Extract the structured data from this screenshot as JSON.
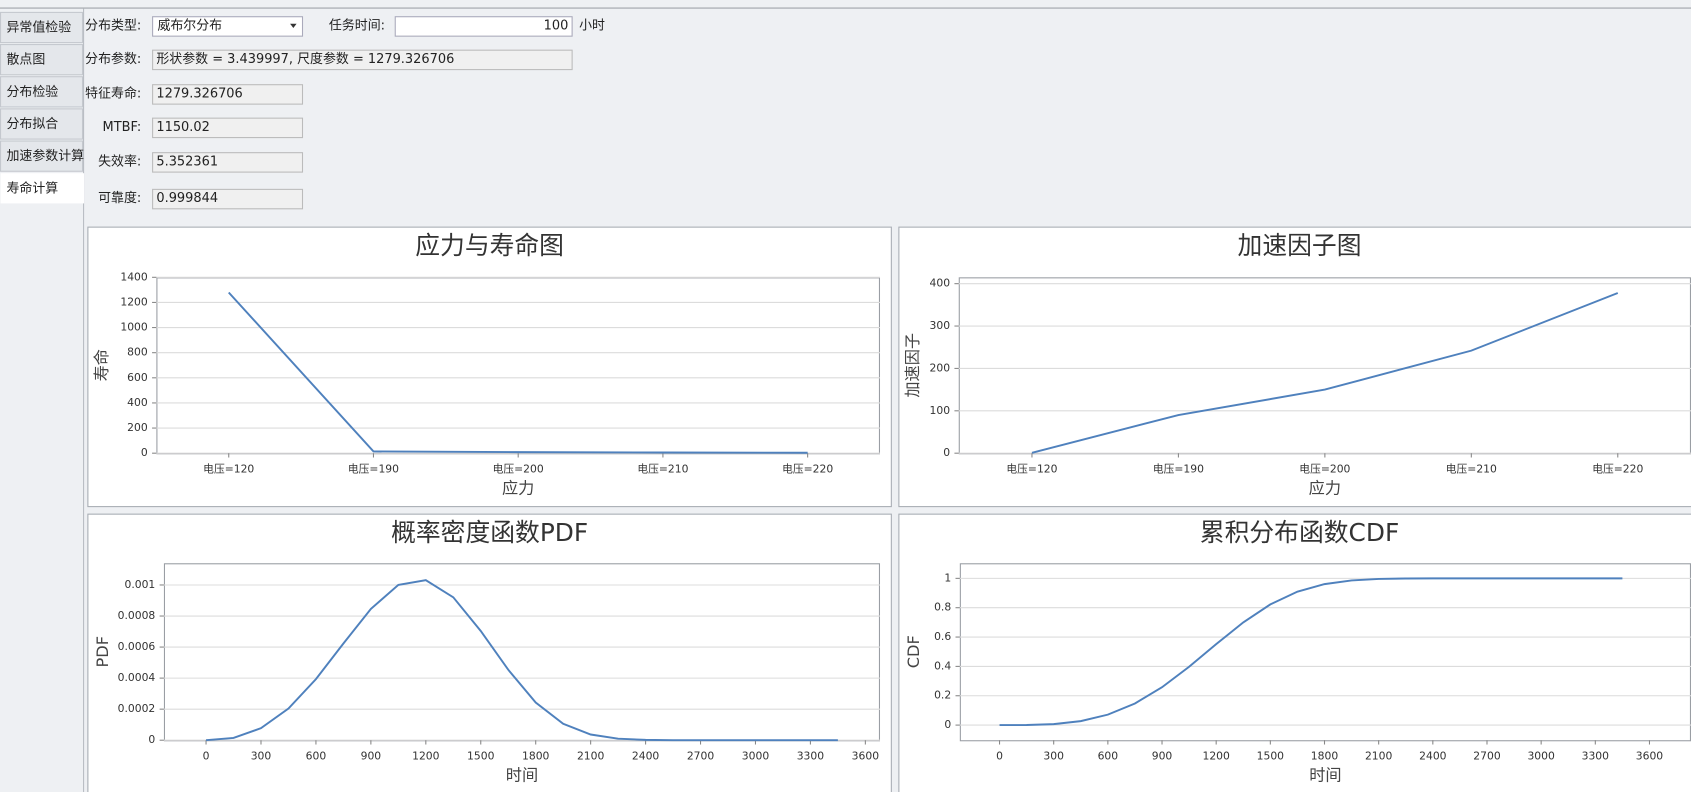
{
  "tabs": [
    "异常值检验",
    "散点图",
    "分布检验",
    "分布拟合",
    "加速参数计算",
    "寿命计算"
  ],
  "form": {
    "dist_type": {
      "label": "分布类型:",
      "value": "威布尔分布"
    },
    "task_time": {
      "label": "任务时间:",
      "value": "100",
      "unit": "小时"
    },
    "params": {
      "label": "分布参数:",
      "value": "形状参数 = 3.439997, 尺度参数 = 1279.326706"
    },
    "char_life": {
      "label": "特征寿命:",
      "value": "1279.326706"
    },
    "mtbf": {
      "label": "MTBF:",
      "value": "1150.02"
    },
    "failure_rate": {
      "label": "失效率:",
      "value": "5.352361"
    },
    "reliability": {
      "label": "可靠度:",
      "value": "0.999844"
    }
  },
  "chart_data": [
    {
      "type": "line",
      "title": "应力与寿命图",
      "x_label": "应力",
      "y_label": "寿命",
      "categories": [
        "电压=120",
        "电压=190",
        "电压=200",
        "电压=210",
        "电压=220"
      ],
      "values": [
        1279.3,
        14,
        8.5,
        5.3,
        3.4
      ],
      "color": "#4f81bd",
      "ylim": [
        0,
        1400
      ],
      "yticks": [
        0,
        200,
        400,
        600,
        800,
        1000,
        1200,
        1400
      ],
      "grid": true
    },
    {
      "type": "line",
      "title": "加速因子图",
      "x_label": "应力",
      "y_label": "加速因子",
      "categories": [
        "电压=120",
        "电压=190",
        "电压=200",
        "电压=210",
        "电压=220"
      ],
      "values": [
        1,
        90,
        150,
        242,
        378
      ],
      "color": "#4f81bd",
      "ylim": [
        0,
        415
      ],
      "yticks": [
        0,
        100,
        200,
        300,
        400
      ],
      "grid": true
    },
    {
      "type": "line",
      "title": "概率密度函数PDF",
      "x_label": "时间",
      "y_label": "PDF",
      "x": [
        0,
        150,
        300,
        450,
        600,
        750,
        900,
        1050,
        1200,
        1350,
        1500,
        1650,
        1800,
        1950,
        2100,
        2250,
        2400,
        2550,
        2700,
        2850,
        3000,
        3150,
        3300,
        3450
      ],
      "values": [
        0,
        1.44e-05,
        7.76e-05,
        0.0002043,
        0.0003936,
        0.000623,
        0.0008459,
        0.0010002,
        0.0010311,
        0.0009206,
        0.0007037,
        0.0004542,
        0.0002429,
        0.000106,
        3.68e-05,
        9.97e-06,
        2.1e-06,
        3e-07,
        0,
        0,
        0,
        0,
        0,
        0
      ],
      "color": "#4f81bd",
      "xlim": [
        -230,
        3680
      ],
      "xticks": [
        0,
        300,
        600,
        900,
        1200,
        1500,
        1800,
        2100,
        2400,
        2700,
        3000,
        3300,
        3600
      ],
      "ylim": [
        0,
        0.00114
      ],
      "yticks": [
        0,
        0.0002,
        0.0004,
        0.0006,
        0.0008,
        0.001
      ],
      "grid": true
    },
    {
      "type": "line",
      "title": "累积分布函数CDF",
      "x_label": "时间",
      "y_label": "CDF",
      "x": [
        0,
        150,
        300,
        450,
        600,
        750,
        900,
        1050,
        1200,
        1350,
        1500,
        1650,
        1800,
        1950,
        2100,
        2250,
        2400,
        2550,
        2700,
        2850,
        3000,
        3150,
        3300,
        3450
      ],
      "values": [
        0,
        0.0006,
        0.0068,
        0.0271,
        0.0713,
        0.1473,
        0.2579,
        0.3975,
        0.5517,
        0.6997,
        0.8225,
        0.9092,
        0.9607,
        0.9859,
        0.9959,
        0.9991,
        0.9998,
        1,
        1,
        1,
        1,
        1,
        1,
        1
      ],
      "color": "#4f81bd",
      "xlim": [
        -220,
        3830
      ],
      "xticks": [
        0,
        300,
        600,
        900,
        1200,
        1500,
        1800,
        2100,
        2400,
        2700,
        3000,
        3300,
        3600
      ],
      "ylim": [
        -0.103,
        1.103
      ],
      "yticks": [
        0,
        0.2,
        0.4,
        0.6,
        0.8,
        1
      ],
      "grid": true
    }
  ]
}
